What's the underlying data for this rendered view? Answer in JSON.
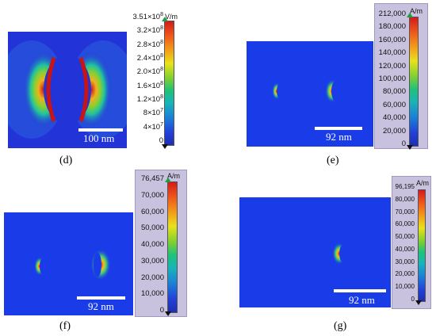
{
  "panels": {
    "d": {
      "label": "(d)",
      "scale_bar": "100 nm",
      "unit": "V/m",
      "ticks": [
        {
          "m": "3.51×10",
          "e": "8"
        },
        {
          "m": "3.2×10",
          "e": "8"
        },
        {
          "m": "2.8×10",
          "e": "8"
        },
        {
          "m": "2.4×10",
          "e": "8"
        },
        {
          "m": "2.0×10",
          "e": "8"
        },
        {
          "m": "1.6×10",
          "e": "8"
        },
        {
          "m": "1.2×10",
          "e": "8"
        },
        {
          "m": "8×10",
          "e": "7"
        },
        {
          "m": "4×10",
          "e": "7"
        },
        {
          "m": "0",
          "e": ""
        }
      ]
    },
    "e": {
      "label": "(e)",
      "scale_bar": "92 nm",
      "unit": "A/m",
      "ticks": [
        "212,000",
        "180,000",
        "160,000",
        "140,000",
        "120,000",
        "100,000",
        "80,000",
        "60,000",
        "40,000",
        "20,000",
        "0"
      ]
    },
    "f": {
      "label": "(f)",
      "scale_bar": "92 nm",
      "unit": "A/m",
      "ticks": [
        "76,457",
        "70,000",
        "60,000",
        "50,000",
        "40,000",
        "30,000",
        "20,000",
        "10,000",
        "0"
      ]
    },
    "g": {
      "label": "(g)",
      "scale_bar": "92 nm",
      "unit": "A/m",
      "ticks": [
        "96,195",
        "80,000",
        "70,000",
        "60,000",
        "50,000",
        "40,000",
        "30,000",
        "20,000",
        "10,000",
        "0"
      ]
    }
  },
  "colors": {
    "field_background_d": "#2233d8",
    "field_background_h": "#1a3be8",
    "colorbar_frame": "#c8c2de",
    "max_marker": "#18a048"
  }
}
